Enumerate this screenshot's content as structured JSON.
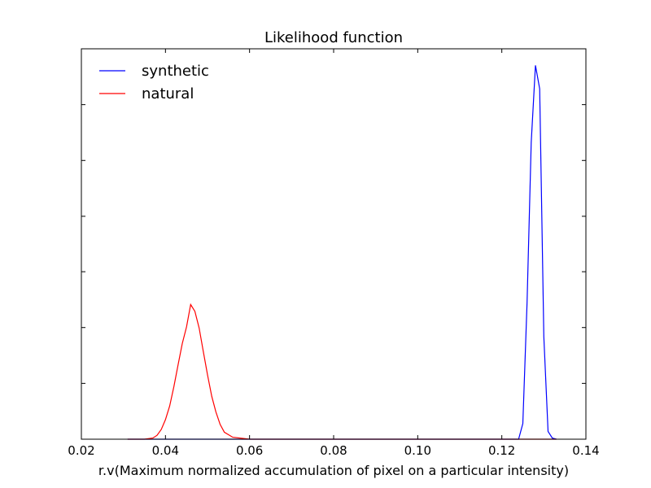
{
  "chart_data": {
    "type": "line",
    "title": "Likelihood function",
    "xlabel": "r.v(Maximum normalized accumulation of pixel on a particular intensity)",
    "ylabel": "",
    "xlim": [
      0.02,
      0.14
    ],
    "ylim": [
      0,
      1.0
    ],
    "x_ticks": [
      0.02,
      0.04,
      0.06,
      0.08,
      0.1,
      0.12,
      0.14
    ],
    "x_tick_labels": [
      "0.02",
      "0.04",
      "0.06",
      "0.08",
      "0.10",
      "0.12",
      "0.14"
    ],
    "y_ticks": [
      0.143,
      0.286,
      0.429,
      0.571,
      0.714,
      0.857
    ],
    "y_tick_labels_shown": false,
    "grid": false,
    "legend": {
      "placement": "top-left",
      "frame": false
    },
    "series": [
      {
        "name": "synthetic",
        "color": "#0000ff",
        "x": [
          0.031,
          0.1,
          0.12,
          0.124,
          0.125,
          0.126,
          0.127,
          0.128,
          0.129,
          0.13,
          0.131,
          0.132,
          0.133
        ],
        "y": [
          0.0,
          0.0,
          0.0,
          0.0,
          0.04,
          0.35,
          0.76,
          0.9575,
          0.8975,
          0.2625,
          0.02,
          0.003,
          0.0
        ]
      },
      {
        "name": "natural",
        "color": "#ff0000",
        "x": [
          0.031,
          0.035,
          0.037,
          0.038,
          0.039,
          0.04,
          0.041,
          0.042,
          0.043,
          0.044,
          0.045,
          0.046,
          0.047,
          0.048,
          0.049,
          0.05,
          0.051,
          0.052,
          0.053,
          0.054,
          0.056,
          0.06,
          0.1,
          0.133
        ],
        "y": [
          0.0,
          0.0,
          0.003,
          0.01,
          0.025,
          0.05,
          0.085,
          0.135,
          0.19,
          0.245,
          0.2875,
          0.345,
          0.3275,
          0.285,
          0.225,
          0.165,
          0.11,
          0.07,
          0.038,
          0.018,
          0.005,
          0.0,
          0.0,
          0.0
        ]
      }
    ]
  }
}
